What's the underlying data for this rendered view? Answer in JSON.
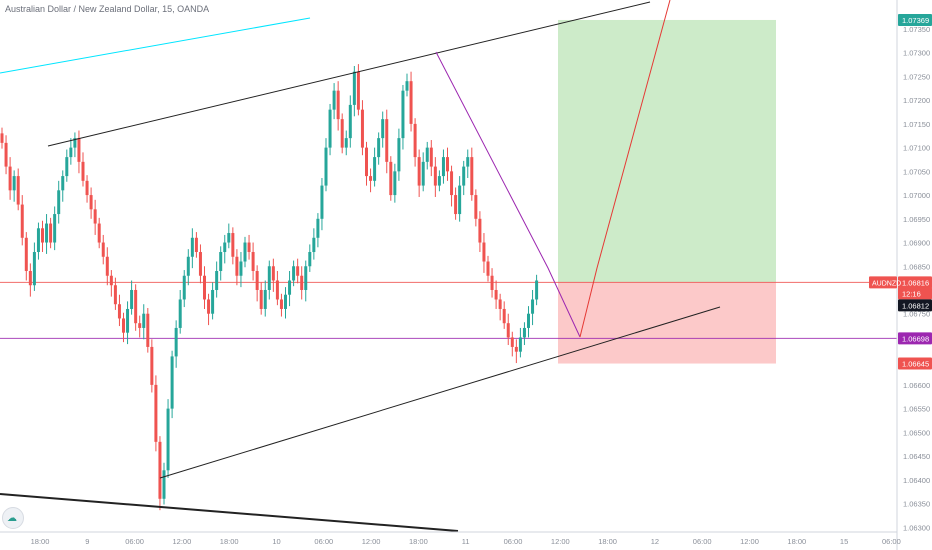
{
  "header": {
    "symbol_title": "Australian Dollar / New Zealand Dollar, 15, OANDA"
  },
  "colors": {
    "up": "#26a69a",
    "down": "#ef5350",
    "target_zone": "#cdebc9",
    "stop_zone": "#fcc9c9",
    "purple": "#9c27b0",
    "cyan": "#00e5ff",
    "red_line": "#e53935",
    "trend": "#222222"
  },
  "icons": {
    "logo": "tradingview-cloud-icon"
  },
  "chart_data": {
    "type": "candlestick",
    "title": "Australian Dollar / New Zealand Dollar, 15, OANDA",
    "price_axis": {
      "ticks": [
        "1.07350",
        "1.07300",
        "1.07250",
        "1.07200",
        "1.07150",
        "1.07100",
        "1.07050",
        "1.07000",
        "1.06950",
        "1.06900",
        "1.06850",
        "1.06800",
        "1.06750",
        "1.06700",
        "1.06650",
        "1.06600",
        "1.06550",
        "1.06500",
        "1.06450",
        "1.06400",
        "1.06350",
        "1.06300"
      ],
      "range": [
        1.0629,
        1.0739
      ]
    },
    "time_axis": {
      "ticks": [
        "18:00",
        "9",
        "06:00",
        "12:00",
        "18:00",
        "10",
        "06:00",
        "12:00",
        "18:00",
        "11",
        "06:00",
        "12:00",
        "18:00",
        "12",
        "06:00",
        "12:00",
        "18:00",
        "15",
        "06:00"
      ]
    },
    "candles_closes": [
      1.0711,
      1.0706,
      1.0701,
      1.0704,
      1.0698,
      1.0691,
      1.0684,
      1.0681,
      1.0688,
      1.0693,
      1.069,
      1.0694,
      1.069,
      1.0696,
      1.0701,
      1.0704,
      1.0708,
      1.071,
      1.0712,
      1.0707,
      1.0703,
      1.07,
      1.0697,
      1.0694,
      1.069,
      1.0687,
      1.0683,
      1.0681,
      1.0677,
      1.0674,
      1.0671,
      1.0676,
      1.068,
      1.0673,
      1.0672,
      1.0675,
      1.0668,
      1.066,
      1.0648,
      1.0636,
      1.0642,
      1.0655,
      1.0666,
      1.0672,
      1.0678,
      1.0683,
      1.0687,
      1.0691,
      1.0688,
      1.0683,
      1.0678,
      1.0675,
      1.068,
      1.0684,
      1.0688,
      1.069,
      1.0692,
      1.0687,
      1.0683,
      1.0686,
      1.069,
      1.0688,
      1.0684,
      1.068,
      1.0676,
      1.068,
      1.0685,
      1.0682,
      1.0678,
      1.0676,
      1.0679,
      1.0682,
      1.0685,
      1.0683,
      1.068,
      1.0685,
      1.0688,
      1.0691,
      1.0695,
      1.0702,
      1.071,
      1.0718,
      1.0722,
      1.0716,
      1.071,
      1.0712,
      1.0719,
      1.0726,
      1.0718,
      1.071,
      1.0704,
      1.0703,
      1.0708,
      1.0712,
      1.0716,
      1.0707,
      1.07,
      1.0705,
      1.0712,
      1.0722,
      1.0724,
      1.0715,
      1.0708,
      1.0702,
      1.0707,
      1.071,
      1.0706,
      1.0702,
      1.0704,
      1.0708,
      1.0705,
      1.07,
      1.0696,
      1.0702,
      1.0706,
      1.0708,
      1.07,
      1.0695,
      1.069,
      1.0686,
      1.0683,
      1.068,
      1.0678,
      1.0676,
      1.0673,
      1.067,
      1.0668,
      1.0667,
      1.067,
      1.0672,
      1.0675,
      1.0678,
      1.0682
    ],
    "horizontal_levels": [
      {
        "price": 1.06816,
        "label": "AUDNZD",
        "color": "#ef5350"
      },
      {
        "price": 1.06698,
        "color": "#9c27b0"
      }
    ],
    "price_labels": [
      {
        "text": "1.07369",
        "color": "#26a69a"
      },
      {
        "text": "1.06816",
        "color": "#ef5350"
      },
      {
        "text": "12:16",
        "color": "#ef5350"
      },
      {
        "text": "1.06812",
        "color": "#131722"
      },
      {
        "text": "1.06698",
        "color": "#9c27b0"
      },
      {
        "text": "1.06645",
        "color": "#ef5350"
      }
    ],
    "symbol_tag": "AUDNZD",
    "position": {
      "entry": 1.06816,
      "target": 1.07369,
      "stop": 1.06645
    }
  }
}
